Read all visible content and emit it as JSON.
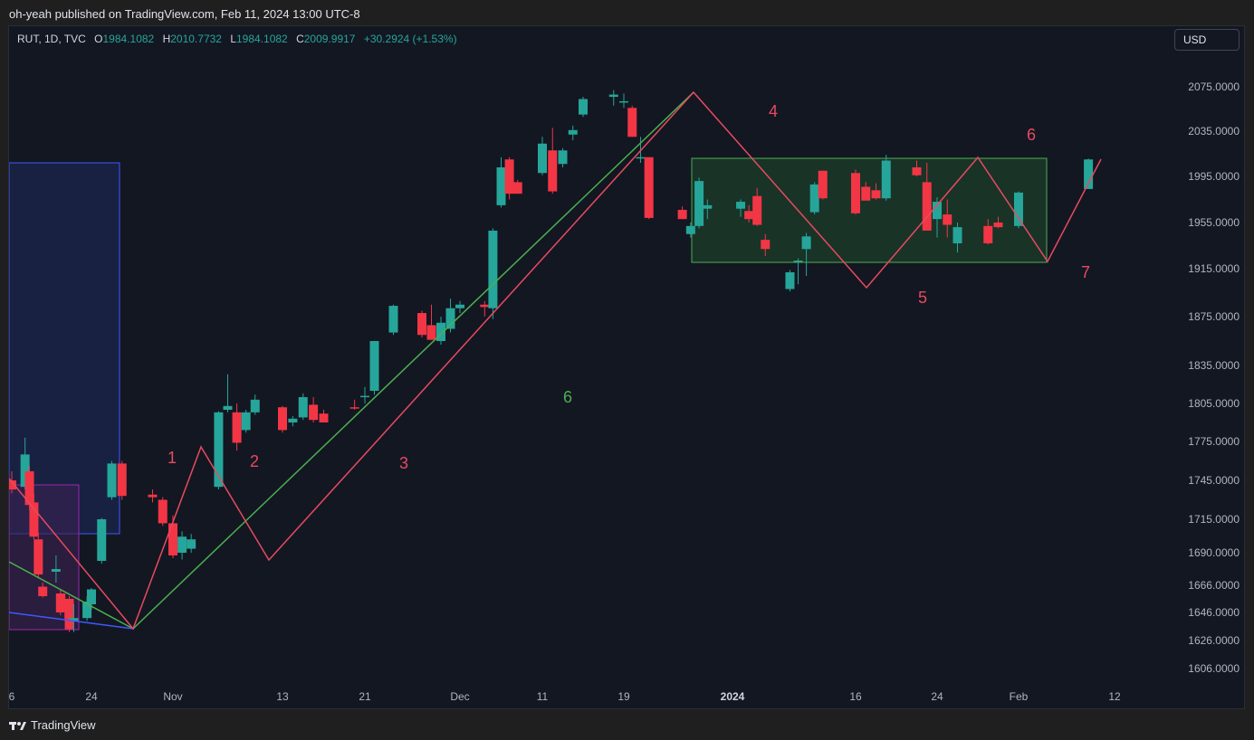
{
  "header": {
    "published": "oh-yeah published on TradingView.com, Feb 11, 2024 13:00 UTC-8"
  },
  "legend": {
    "symbol": "RUT, 1D, TVC",
    "o_label": "O",
    "o_value": "1984.1082",
    "h_label": "H",
    "h_value": "2010.7732",
    "l_label": "L",
    "l_value": "1984.1082",
    "c_label": "C",
    "c_value": "2009.9917",
    "change": "+30.2924 (+1.53%)"
  },
  "currency": "USD",
  "footer": {
    "brand": "TradingView"
  },
  "colors": {
    "up": "#26a69a",
    "down": "#f23645",
    "green_line": "#4caf50",
    "red_line": "#e84a5f",
    "blue_line": "#3d5afe",
    "background": "#131722"
  },
  "chart_data": {
    "type": "candlestick",
    "y_ticks": [
      "2075.0000",
      "2035.0000",
      "1995.0000",
      "1955.0000",
      "1915.0000",
      "1875.0000",
      "1835.0000",
      "1805.0000",
      "1775.0000",
      "1745.0000",
      "1715.0000",
      "1690.0000",
      "1666.0000",
      "1646.0000",
      "1626.0000",
      "1606.0000"
    ],
    "x_ticks": [
      "6",
      "24",
      "Nov",
      "13",
      "21",
      "Dec",
      "11",
      "19",
      "2024",
      "16",
      "24",
      "Feb",
      "12"
    ],
    "bold_x_tick": "2024",
    "wave_labels": [
      {
        "text": "1",
        "color": "red"
      },
      {
        "text": "2",
        "color": "red"
      },
      {
        "text": "3",
        "color": "red"
      },
      {
        "text": "4",
        "color": "red"
      },
      {
        "text": "5",
        "color": "red"
      },
      {
        "text": "6",
        "color": "red"
      },
      {
        "text": "7",
        "color": "red"
      },
      {
        "text": "6",
        "color": "green"
      }
    ],
    "candles": [
      {
        "t": "Oct 06",
        "o": 1745,
        "h": 1752,
        "l": 1735,
        "c": 1738
      },
      {
        "t": "Oct 09",
        "o": 1740,
        "h": 1778,
        "l": 1738,
        "c": 1765
      },
      {
        "t": "Oct 10",
        "o": 1752,
        "h": 1756,
        "l": 1722,
        "c": 1726
      },
      {
        "t": "Oct 11",
        "o": 1728,
        "h": 1735,
        "l": 1700,
        "c": 1702
      },
      {
        "t": "Oct 12",
        "o": 1700,
        "h": 1705,
        "l": 1672,
        "c": 1674
      },
      {
        "t": "Oct 13",
        "o": 1665,
        "h": 1668,
        "l": 1657,
        "c": 1658
      },
      {
        "t": "Oct 16",
        "o": 1676,
        "h": 1688,
        "l": 1668,
        "c": 1678
      },
      {
        "t": "Oct 17",
        "o": 1660,
        "h": 1663,
        "l": 1644,
        "c": 1646
      },
      {
        "t": "Oct 18",
        "o": 1648,
        "h": 1660,
        "l": 1640,
        "c": 1647
      },
      {
        "t": "Oct 19",
        "o": 1656,
        "h": 1658,
        "l": 1632,
        "c": 1634
      },
      {
        "t": "Oct 20",
        "o": 1640,
        "h": 1652,
        "l": 1632,
        "c": 1642
      },
      {
        "t": "Oct 23",
        "o": 1642,
        "h": 1658,
        "l": 1640,
        "c": 1654
      },
      {
        "t": "Oct 24",
        "o": 1652,
        "h": 1664,
        "l": 1648,
        "c": 1663
      },
      {
        "t": "Oct 25",
        "o": 1684,
        "h": 1716,
        "l": 1682,
        "c": 1715
      },
      {
        "t": "Oct 26",
        "o": 1732,
        "h": 1760,
        "l": 1730,
        "c": 1758
      },
      {
        "t": "Oct 27",
        "o": 1758,
        "h": 1760,
        "l": 1730,
        "c": 1733
      },
      {
        "t": "Oct 30",
        "o": 1734,
        "h": 1738,
        "l": 1728,
        "c": 1732
      },
      {
        "t": "Oct 31",
        "o": 1730,
        "h": 1732,
        "l": 1710,
        "c": 1712
      },
      {
        "t": "Nov 01",
        "o": 1712,
        "h": 1718,
        "l": 1686,
        "c": 1688
      },
      {
        "t": "Nov 02",
        "o": 1690,
        "h": 1706,
        "l": 1685,
        "c": 1702
      },
      {
        "t": "Nov 03",
        "o": 1693,
        "h": 1704,
        "l": 1690,
        "c": 1700
      },
      {
        "t": "Nov 06",
        "o": 1740,
        "h": 1799,
        "l": 1738,
        "c": 1798
      },
      {
        "t": "Nov 07",
        "o": 1800,
        "h": 1828,
        "l": 1798,
        "c": 1803
      },
      {
        "t": "Nov 08",
        "o": 1798,
        "h": 1805,
        "l": 1768,
        "c": 1774
      },
      {
        "t": "Nov 09",
        "o": 1784,
        "h": 1800,
        "l": 1782,
        "c": 1798
      },
      {
        "t": "Nov 10",
        "o": 1798,
        "h": 1812,
        "l": 1796,
        "c": 1808
      },
      {
        "t": "Nov 13",
        "o": 1802,
        "h": 1803,
        "l": 1782,
        "c": 1784
      },
      {
        "t": "Nov 14",
        "o": 1790,
        "h": 1795,
        "l": 1787,
        "c": 1793
      },
      {
        "t": "Nov 15",
        "o": 1794,
        "h": 1813,
        "l": 1792,
        "c": 1810
      },
      {
        "t": "Nov 16",
        "o": 1804,
        "h": 1810,
        "l": 1790,
        "c": 1792
      },
      {
        "t": "Nov 17",
        "o": 1797,
        "h": 1800,
        "l": 1790,
        "c": 1790
      },
      {
        "t": "Nov 20",
        "o": 1802,
        "h": 1808,
        "l": 1800,
        "c": 1801
      },
      {
        "t": "Nov 21",
        "o": 1810,
        "h": 1818,
        "l": 1805,
        "c": 1811
      },
      {
        "t": "Nov 22",
        "o": 1815,
        "h": 1855,
        "l": 1812,
        "c": 1855
      },
      {
        "t": "Nov 24",
        "o": 1862,
        "h": 1885,
        "l": 1860,
        "c": 1884
      },
      {
        "t": "Nov 27",
        "o": 1878,
        "h": 1880,
        "l": 1858,
        "c": 1860
      },
      {
        "t": "Nov 28",
        "o": 1868,
        "h": 1885,
        "l": 1856,
        "c": 1856
      },
      {
        "t": "Nov 29",
        "o": 1855,
        "h": 1875,
        "l": 1852,
        "c": 1870
      },
      {
        "t": "Nov 30",
        "o": 1865,
        "h": 1890,
        "l": 1862,
        "c": 1882
      },
      {
        "t": "Dec 01",
        "o": 1882,
        "h": 1888,
        "l": 1878,
        "c": 1885
      },
      {
        "t": "Dec 04",
        "o": 1885,
        "h": 1888,
        "l": 1875,
        "c": 1883
      },
      {
        "t": "Dec 05",
        "o": 1882,
        "h": 1950,
        "l": 1873,
        "c": 1948
      },
      {
        "t": "Dec 06",
        "o": 1970,
        "h": 2012,
        "l": 1968,
        "c": 2003
      },
      {
        "t": "Dec 07",
        "o": 2010,
        "h": 2012,
        "l": 1975,
        "c": 1980
      },
      {
        "t": "Dec 08",
        "o": 1990,
        "h": 1992,
        "l": 1980,
        "c": 1980
      },
      {
        "t": "Dec 11",
        "o": 1998,
        "h": 2030,
        "l": 1996,
        "c": 2024
      },
      {
        "t": "Dec 12",
        "o": 2018,
        "h": 2038,
        "l": 1980,
        "c": 1982
      },
      {
        "t": "Dec 13",
        "o": 2006,
        "h": 2020,
        "l": 2003,
        "c": 2018
      },
      {
        "t": "Dec 14",
        "o": 2032,
        "h": 2040,
        "l": 2027,
        "c": 2036
      },
      {
        "t": "Dec 15",
        "o": 2050,
        "h": 2066,
        "l": 2048,
        "c": 2064
      },
      {
        "t": "Dec 18",
        "o": 2066,
        "h": 2072,
        "l": 2058,
        "c": 2068
      },
      {
        "t": "Dec 19",
        "o": 2062,
        "h": 2069,
        "l": 2056,
        "c": 2062
      },
      {
        "t": "Dec 20",
        "o": 2056,
        "h": 2058,
        "l": 2030,
        "c": 2030
      },
      {
        "t": "Dec 21",
        "o": 2012,
        "h": 2030,
        "l": 2007,
        "c": 2012
      },
      {
        "t": "Dec 22",
        "o": 2012,
        "h": 2012,
        "l": 1958,
        "c": 1959
      },
      {
        "t": "Dec 26",
        "o": 1966,
        "h": 1969,
        "l": 1958,
        "c": 1958
      },
      {
        "t": "Dec 27",
        "o": 1945,
        "h": 1955,
        "l": 1942,
        "c": 1952
      },
      {
        "t": "Dec 28",
        "o": 1952,
        "h": 1994,
        "l": 1950,
        "c": 1991
      },
      {
        "t": "Dec 29",
        "o": 1967,
        "h": 1975,
        "l": 1958,
        "c": 1970
      },
      {
        "t": "Jan 02",
        "o": 1967,
        "h": 1975,
        "l": 1960,
        "c": 1973
      },
      {
        "t": "Jan 03",
        "o": 1965,
        "h": 1970,
        "l": 1955,
        "c": 1958
      },
      {
        "t": "Jan 04",
        "o": 1978,
        "h": 1985,
        "l": 1952,
        "c": 1953
      },
      {
        "t": "Jan 05",
        "o": 1940,
        "h": 1945,
        "l": 1926,
        "c": 1932
      },
      {
        "t": "Jan 08",
        "o": 1898,
        "h": 1914,
        "l": 1896,
        "c": 1912
      },
      {
        "t": "Jan 09",
        "o": 1922,
        "h": 1924,
        "l": 1902,
        "c": 1922
      },
      {
        "t": "Jan 10",
        "o": 1932,
        "h": 1946,
        "l": 1909,
        "c": 1943
      },
      {
        "t": "Jan 11",
        "o": 1964,
        "h": 1990,
        "l": 1962,
        "c": 1988
      },
      {
        "t": "Jan 12",
        "o": 2000,
        "h": 2000,
        "l": 1975,
        "c": 1976
      },
      {
        "t": "Jan 16",
        "o": 1998,
        "h": 2001,
        "l": 1962,
        "c": 1963
      },
      {
        "t": "Jan 17",
        "o": 1986,
        "h": 1990,
        "l": 1975,
        "c": 1974
      },
      {
        "t": "Jan 18",
        "o": 1983,
        "h": 1989,
        "l": 1975,
        "c": 1976
      },
      {
        "t": "Jan 19",
        "o": 1976,
        "h": 2014,
        "l": 1974,
        "c": 2009
      },
      {
        "t": "Jan 22",
        "o": 2003,
        "h": 2009,
        "l": 1995,
        "c": 1996
      },
      {
        "t": "Jan 23",
        "o": 1990,
        "h": 2007,
        "l": 1952,
        "c": 1948
      },
      {
        "t": "Jan 24",
        "o": 1958,
        "h": 1977,
        "l": 1942,
        "c": 1973
      },
      {
        "t": "Jan 25",
        "o": 1962,
        "h": 1975,
        "l": 1942,
        "c": 1953
      },
      {
        "t": "Jan 26",
        "o": 1937,
        "h": 1955,
        "l": 1929,
        "c": 1951
      },
      {
        "t": "Jan 29",
        "o": 1952,
        "h": 1958,
        "l": 1936,
        "c": 1937
      },
      {
        "t": "Jan 30",
        "o": 1955,
        "h": 1960,
        "l": 1950,
        "c": 1951
      },
      {
        "t": "Feb 01",
        "o": 1952,
        "h": 1982,
        "l": 1950,
        "c": 1981
      },
      {
        "t": "Feb 09",
        "o": 1984.1082,
        "h": 2010.7732,
        "l": 1984.1082,
        "c": 2009.9917
      }
    ]
  }
}
